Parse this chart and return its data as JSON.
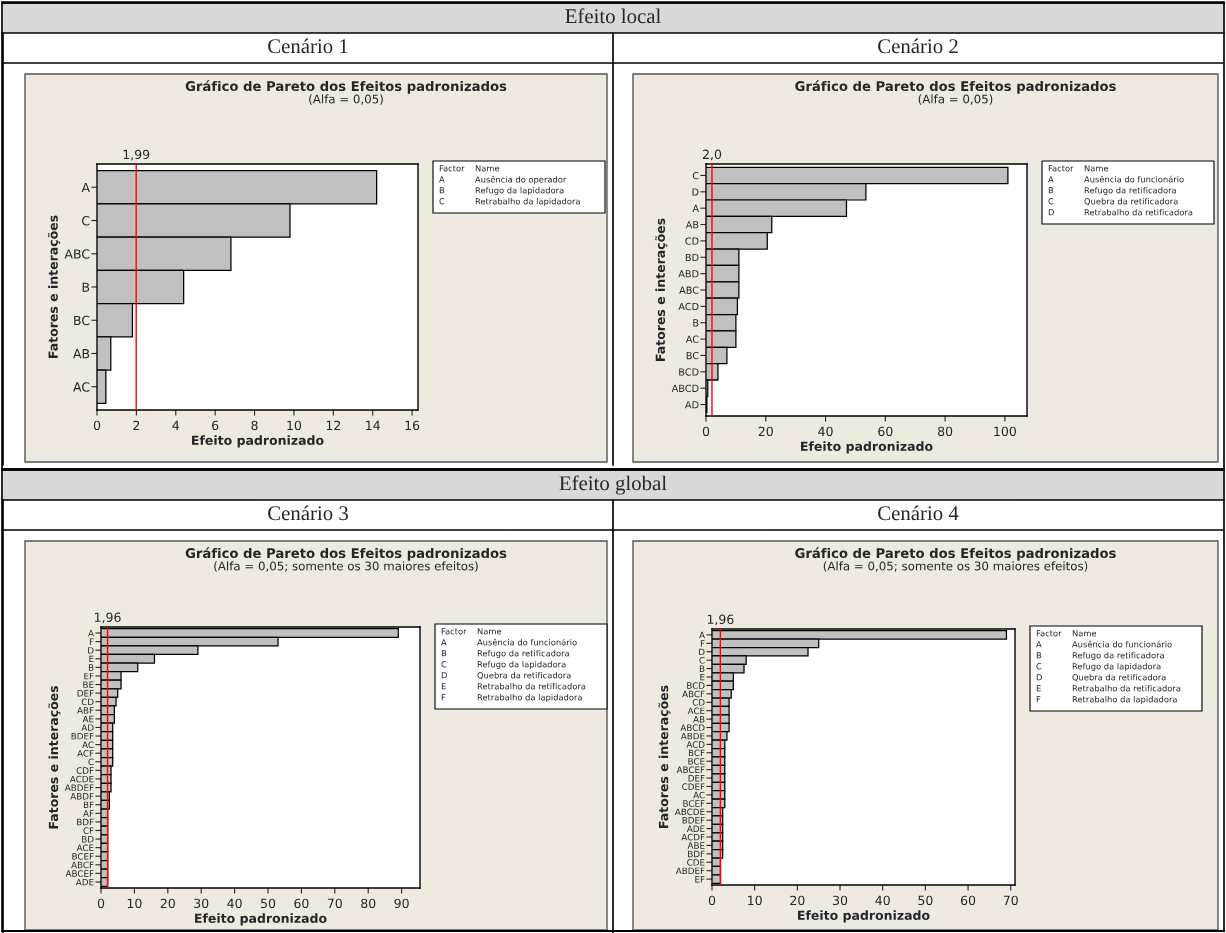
{
  "chart_data": [
    {
      "type": "bar",
      "orientation": "horizontal",
      "title": "Gráfico de Pareto dos Efeitos padronizados",
      "subtitle": "(Alfa = 0,05)",
      "xlabel": "Efeito padronizado",
      "ylabel": "Fatores e interações",
      "color": "#c0c0c0",
      "categories": [
        "A",
        "C",
        "ABC",
        "B",
        "BC",
        "AB",
        "AC"
      ],
      "values": [
        14.2,
        9.8,
        6.8,
        4.4,
        1.8,
        0.7,
        0.45
      ],
      "xlim": [
        0,
        16.3
      ],
      "xticks": [
        0,
        2,
        4,
        6,
        8,
        10,
        12,
        14,
        16
      ],
      "ref_lines": [
        {
          "axis": "x",
          "value": 1.99,
          "label": "1,99",
          "color": "#ff0000"
        }
      ],
      "annotations": [
        "Efeito local",
        "Cenário 1",
        "Factor",
        "Name",
        "A",
        "Ausência do operador",
        "B",
        "Refugo da lapidadora",
        "C",
        "Retrabalho da lapidadora"
      ]
    },
    {
      "type": "bar",
      "orientation": "horizontal",
      "title": "Gráfico de Pareto dos Efeitos padronizados",
      "subtitle": "(Alfa = 0,05)",
      "xlabel": "Efeito padronizado",
      "ylabel": "Fatores e interações",
      "color": "#c0c0c0",
      "categories": [
        "C",
        "D",
        "A",
        "AB",
        "CD",
        "BD",
        "ABD",
        "ABC",
        "ACD",
        "B",
        "AC",
        "BC",
        "BCD",
        "ABCD",
        "AD"
      ],
      "values": [
        101,
        53.5,
        47,
        22,
        20.5,
        11,
        11,
        11,
        10.5,
        10,
        10,
        7,
        4,
        0.6,
        0.3
      ],
      "xlim": [
        0,
        107.4
      ],
      "xticks": [
        0,
        20,
        40,
        60,
        80,
        100
      ],
      "ref_lines": [
        {
          "axis": "x",
          "value": 2.0,
          "label": "2,0",
          "color": "#ff0000"
        }
      ],
      "annotations": [
        "Cenário 2",
        "Factor",
        "Name",
        "A",
        "Ausência do funcionário",
        "B",
        "Refugo da retificadora",
        "C",
        "Quebra da retificadora",
        "D",
        "Retrabalho da retificadora"
      ]
    },
    {
      "type": "bar",
      "orientation": "horizontal",
      "title": "Gráfico de Pareto dos Efeitos padronizados",
      "subtitle": "(Alfa = 0,05; somente os 30 maiores efeitos)",
      "xlabel": "Efeito padronizado",
      "ylabel": "Fatores e interações",
      "color": "#c0c0c0",
      "categories": [
        "A",
        "F",
        "D",
        "E",
        "B",
        "EF",
        "BE",
        "DEF",
        "CD",
        "ABF",
        "AE",
        "AD",
        "BDEF",
        "AC",
        "ACF",
        "C",
        "CDF",
        "ACDE",
        "ABDEF",
        "ABDF",
        "BF",
        "AF",
        "BDF",
        "CF",
        "BD",
        "ACE",
        "BCEF",
        "ABCF",
        "ABCEF",
        "ADE"
      ],
      "values": [
        89,
        53,
        29,
        16,
        11,
        6,
        6,
        5,
        4.5,
        4,
        4,
        3.5,
        3.5,
        3.5,
        3.5,
        3.5,
        3,
        3,
        3,
        2.5,
        2.5,
        2,
        2,
        2,
        2,
        2,
        2,
        2,
        2,
        2
      ],
      "xlim": [
        0,
        95.5
      ],
      "xticks": [
        0,
        10,
        20,
        30,
        40,
        50,
        60,
        70,
        80,
        90
      ],
      "ref_lines": [
        {
          "axis": "x",
          "value": 1.96,
          "label": "1,96",
          "color": "#ff0000"
        }
      ],
      "annotations": [
        "Efeito global",
        "Cenário 3",
        "Factor",
        "Name",
        "A",
        "Ausência do funcionário",
        "B",
        "Refugo da retificadora",
        "C",
        "Refugo da lapidadora",
        "D",
        "Quebra da retificadora",
        "E",
        "Retrabalho da retificadora",
        "F",
        "Retrabalho da lapidadora"
      ]
    },
    {
      "type": "bar",
      "orientation": "horizontal",
      "title": "Gráfico de Pareto dos Efeitos padronizados",
      "subtitle": "(Alfa = 0,05; somente os 30 maiores efeitos)",
      "xlabel": "Efeito padronizado",
      "ylabel": "Fatores e interações",
      "color": "#c0c0c0",
      "categories": [
        "A",
        "F",
        "D",
        "C",
        "B",
        "E",
        "BCD",
        "ABCF",
        "CD",
        "ACE",
        "AB",
        "ABCD",
        "ABDE",
        "ACD",
        "BCF",
        "BCE",
        "ABCEF",
        "DEF",
        "CDEF",
        "AC",
        "BCEF",
        "ABCDE",
        "BDEF",
        "ADE",
        "ACDF",
        "ABE",
        "BDF",
        "CDE",
        "ABDEF",
        "EF"
      ],
      "values": [
        69,
        25,
        22.5,
        8,
        7.5,
        5,
        5,
        4.5,
        4,
        4,
        4,
        4,
        3.5,
        3,
        3,
        3,
        3,
        3,
        3,
        3,
        3,
        2.5,
        2.5,
        2.5,
        2.5,
        2.5,
        2.5,
        2,
        2,
        2
      ],
      "xlim": [
        0,
        71
      ],
      "xticks": [
        0,
        10,
        20,
        30,
        40,
        50,
        60,
        70
      ],
      "ref_lines": [
        {
          "axis": "x",
          "value": 1.96,
          "label": "1,96",
          "color": "#ff0000"
        }
      ],
      "annotations": [
        "Cenário 4",
        "Factor",
        "Name",
        "A",
        "Ausência do funcionário",
        "B",
        "Refugo da retificadora",
        "C",
        "Refugo da lapidadora",
        "D",
        "Quebra da retificadora",
        "E",
        "Retrabalho da retificadora",
        "F",
        "Retrabalho da lapidadora"
      ]
    }
  ]
}
